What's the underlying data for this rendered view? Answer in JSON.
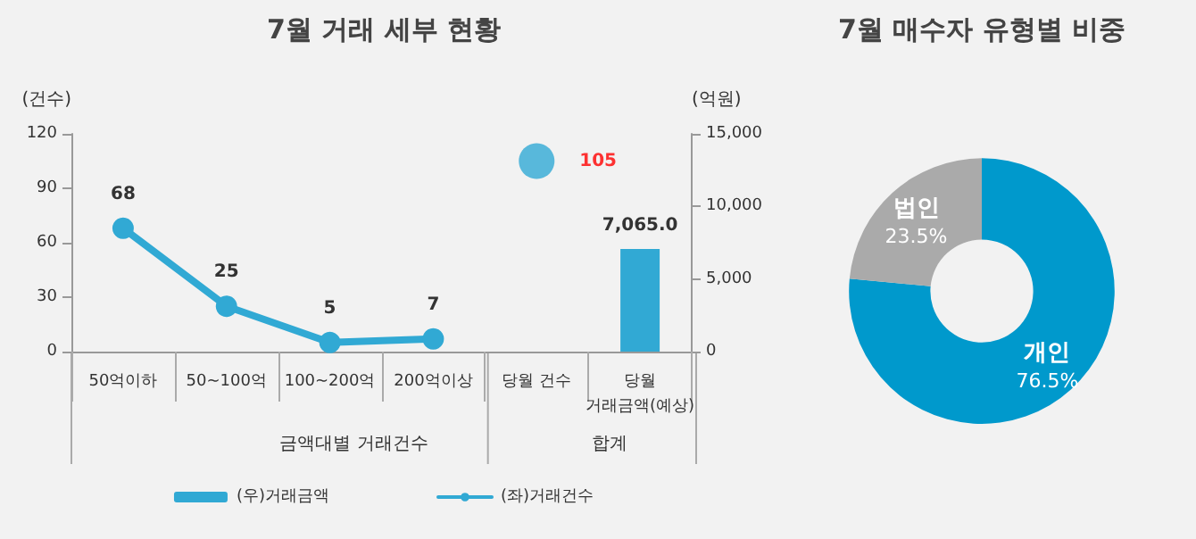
{
  "chart_data": [
    {
      "type": "bar",
      "title": "7월 거래 세부 현황",
      "ylabel": "(건수)",
      "y2label": "(억원)",
      "categories": [
        "50억이하",
        "50~100억",
        "100~200억",
        "200억이상",
        "당월 건수",
        "당월\n거래금액(예상)"
      ],
      "series": [
        {
          "name": "(우)거래금액",
          "type": "bar",
          "axis": "y2",
          "color": "#31a9d4",
          "values": [
            null,
            null,
            null,
            null,
            null,
            7065.0
          ],
          "value_labels": [
            null,
            null,
            null,
            null,
            null,
            "7,065.0"
          ]
        },
        {
          "name": "(좌)거래건수",
          "type": "line",
          "color": "#31a9d4",
          "marker": "circle",
          "values": [
            68,
            25,
            5,
            7,
            null,
            null
          ],
          "value_labels": [
            "68",
            "25",
            "5",
            "7",
            null,
            null
          ]
        },
        {
          "type": "scatter",
          "color": "#31a9d4",
          "values": [
            null,
            null,
            null,
            null,
            105,
            null
          ],
          "value_labels": [
            null,
            null,
            null,
            null,
            "105",
            null
          ]
        }
      ],
      "ylim": [
        0,
        120
      ],
      "yticks": [
        0,
        30,
        60,
        90,
        120
      ],
      "y2lim": [
        0,
        15000
      ],
      "y2ticks": [
        0,
        {
          "value": 5000,
          "label": "5,000"
        },
        {
          "value": 10000,
          "label": "10,000"
        },
        {
          "value": 15000,
          "label": "15,000"
        }
      ],
      "annotations": [
        "금액대별 거래건수",
        "합계"
      ],
      "grid": false,
      "legend": "bottom"
    },
    {
      "type": "donut",
      "title": "7월 매수자 유형별 비중",
      "categories": [
        "개인",
        "법인"
      ],
      "values": [
        76.5,
        23.5
      ],
      "value_labels": [
        "76.5%",
        "23.5%"
      ],
      "colors": [
        "#0099cc",
        "#aaaaaa"
      ],
      "legend": false
    }
  ]
}
